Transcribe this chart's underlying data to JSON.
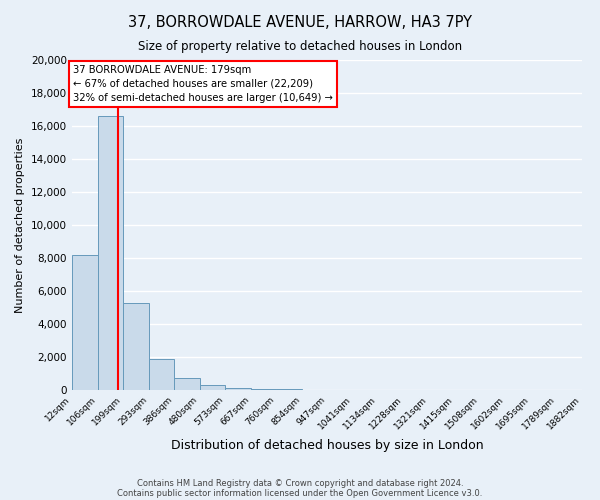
{
  "title": "37, BORROWDALE AVENUE, HARROW, HA3 7PY",
  "subtitle": "Size of property relative to detached houses in London",
  "xlabel": "Distribution of detached houses by size in London",
  "ylabel": "Number of detached properties",
  "bar_color": "#c9daea",
  "bar_edge_color": "#6699bb",
  "background_color": "#e8f0f8",
  "fig_background_color": "#e8f0f8",
  "grid_color": "#ffffff",
  "red_line_x": 179,
  "annotation_title": "37 BORROWDALE AVENUE: 179sqm",
  "annotation_line1": "← 67% of detached houses are smaller (22,209)",
  "annotation_line2": "32% of semi-detached houses are larger (10,649) →",
  "bin_edges": [
    12,
    106,
    199,
    293,
    386,
    480,
    573,
    667,
    760,
    854,
    947,
    1041,
    1134,
    1228,
    1321,
    1415,
    1508,
    1602,
    1695,
    1789,
    1882
  ],
  "bin_counts": [
    8200,
    16600,
    5300,
    1850,
    750,
    300,
    150,
    80,
    50,
    0,
    0,
    0,
    0,
    0,
    0,
    0,
    0,
    0,
    0,
    0
  ],
  "ylim": [
    0,
    20000
  ],
  "yticks": [
    0,
    2000,
    4000,
    6000,
    8000,
    10000,
    12000,
    14000,
    16000,
    18000,
    20000
  ],
  "footer_line1": "Contains HM Land Registry data © Crown copyright and database right 2024.",
  "footer_line2": "Contains public sector information licensed under the Open Government Licence v3.0."
}
